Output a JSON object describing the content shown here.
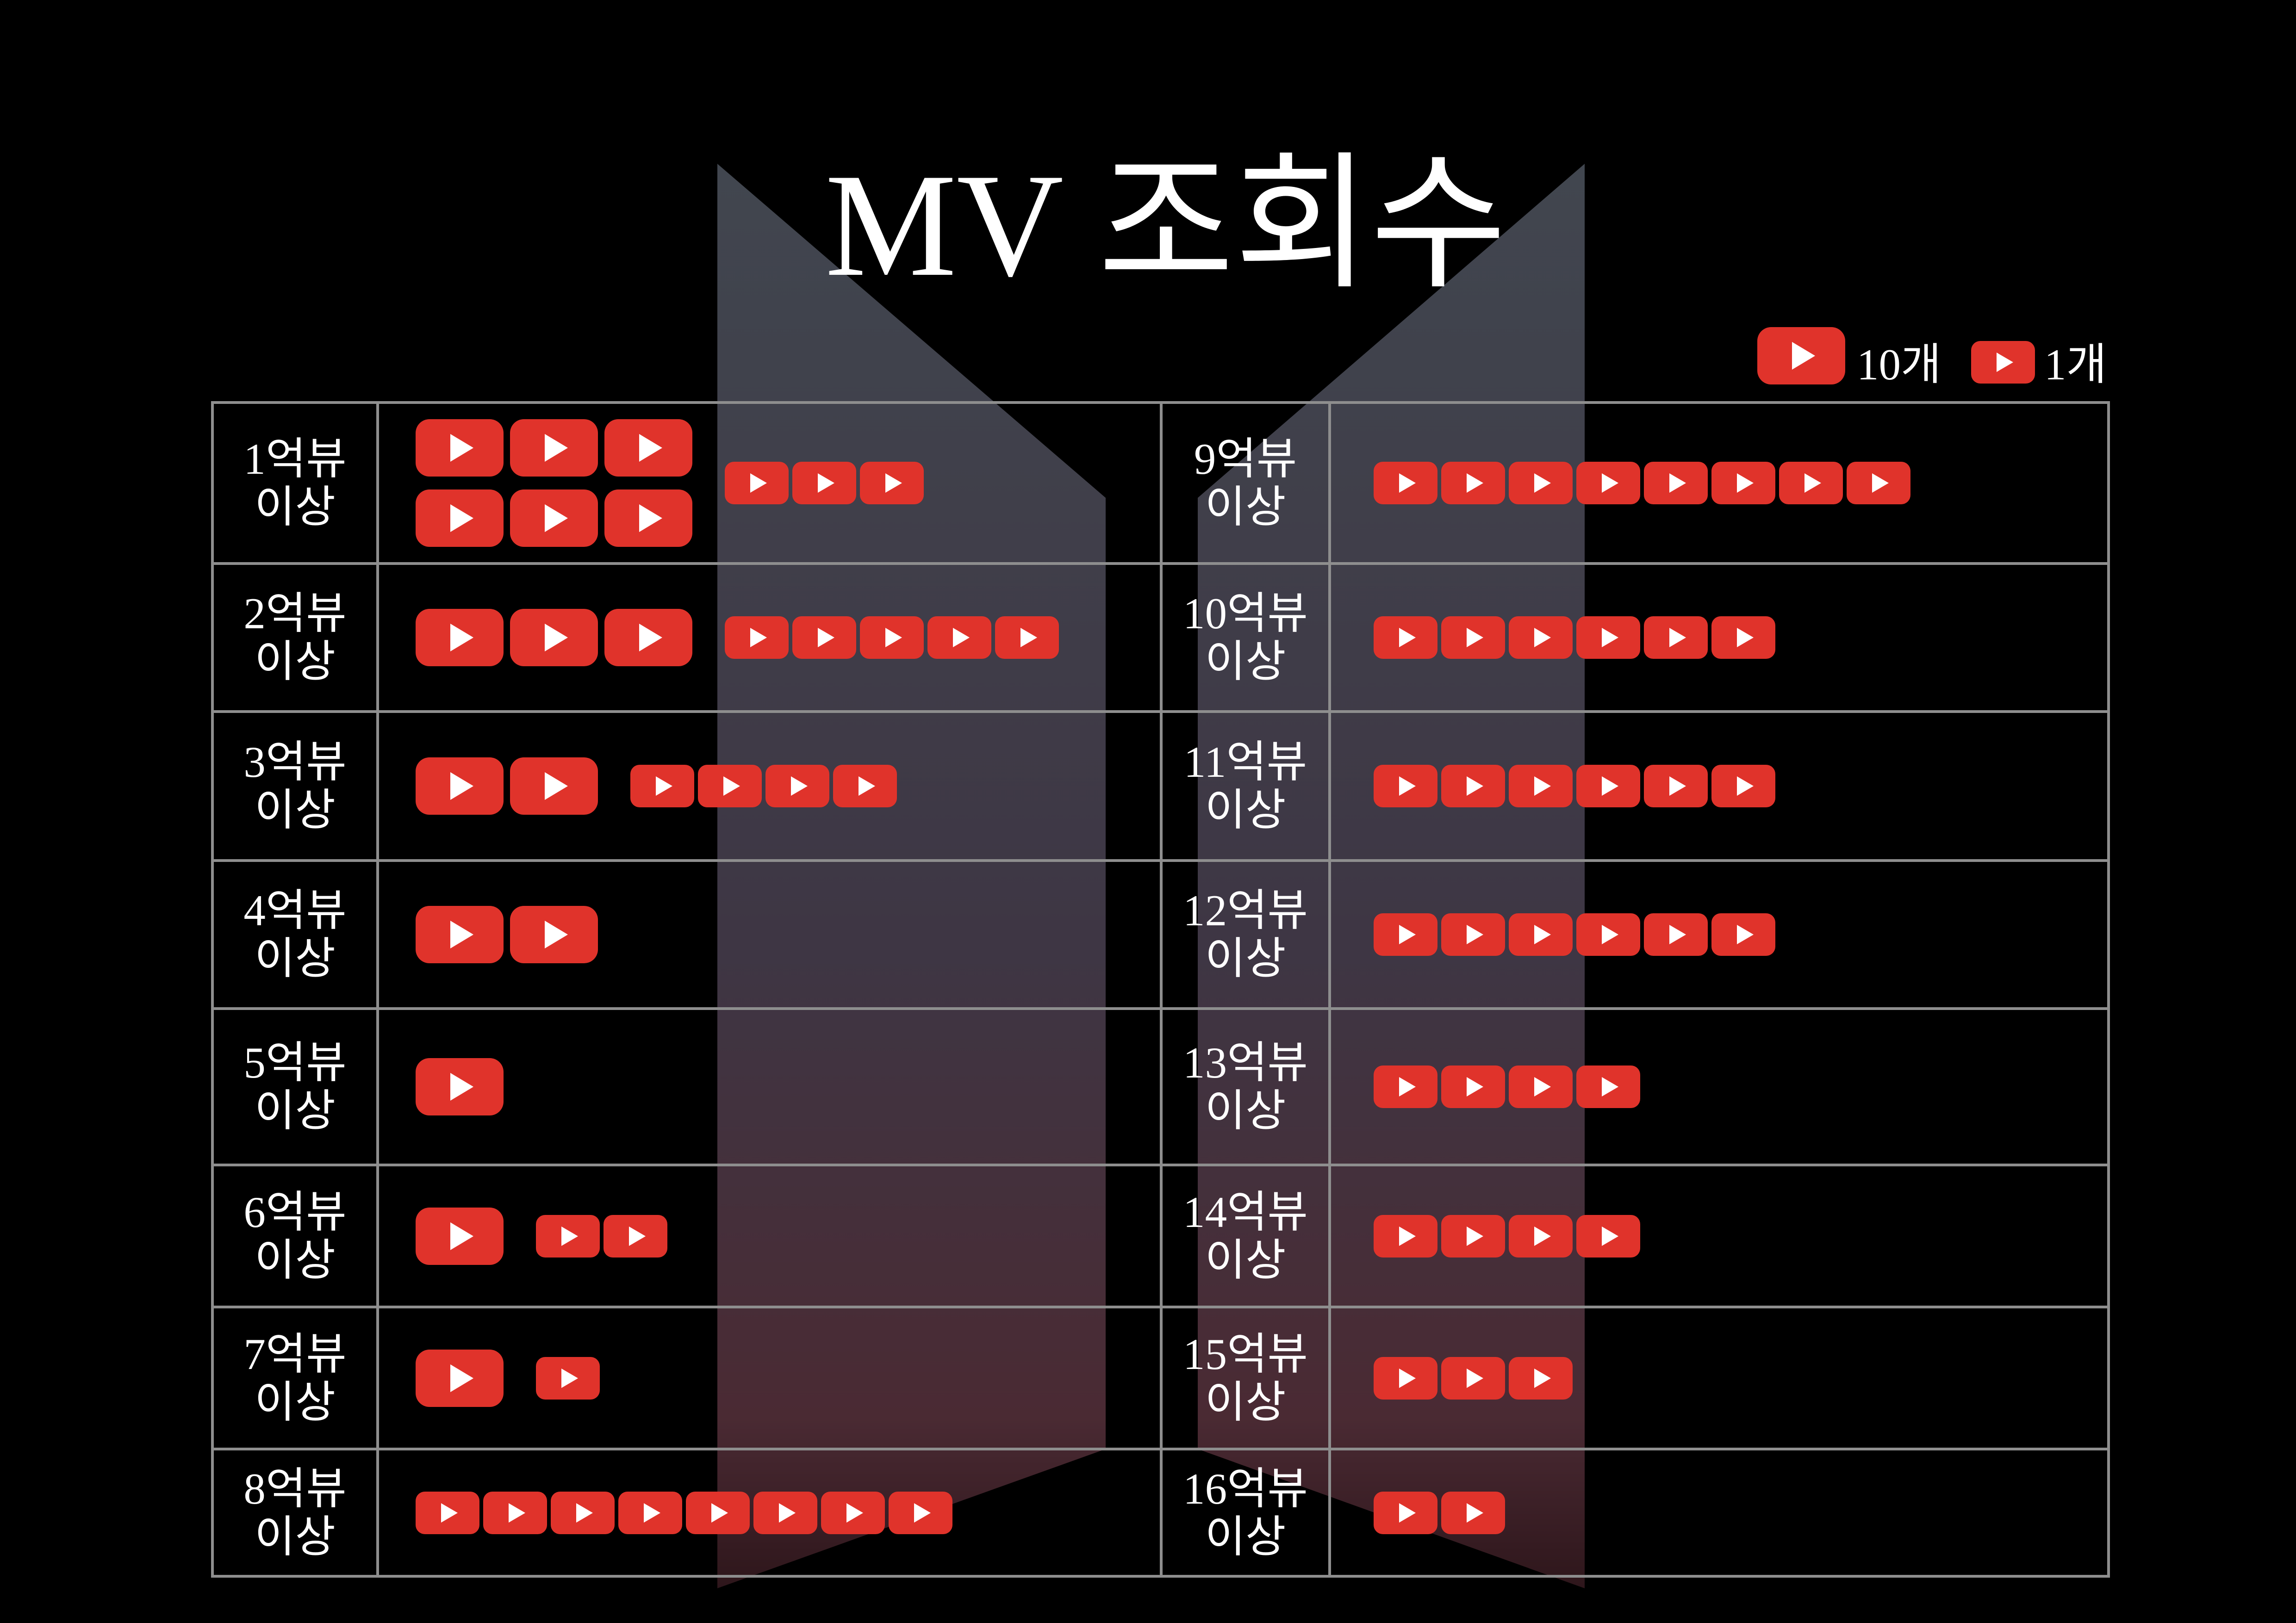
{
  "colors": {
    "background": "#000000",
    "text": "#ffffff",
    "icon": "#e0332b",
    "icon_glyph": "#ffffff",
    "grid": "#8e8e8e",
    "logo_panel_top": "#41464f",
    "logo_panel_bottom": "#4a2a33"
  },
  "chart_data": {
    "type": "bar",
    "title": "MV 조회수",
    "legend": [
      {
        "label": "10개",
        "icon": "youtube-play-icon-large"
      },
      {
        "label": "1개",
        "icon": "youtube-play-icon-small"
      }
    ],
    "categories": [
      "1억뷰 이상",
      "2억뷰 이상",
      "3억뷰 이상",
      "4억뷰 이상",
      "5억뷰 이상",
      "6억뷰 이상",
      "7억뷰 이상",
      "8억뷰 이상",
      "9억뷰 이상",
      "10억뷰 이상",
      "11억뷰 이상",
      "12억뷰 이상",
      "13억뷰 이상",
      "14억뷰 이상",
      "15억뷰 이상",
      "16억뷰 이상"
    ],
    "values": [
      63,
      35,
      24,
      20,
      10,
      12,
      11,
      8,
      8,
      6,
      6,
      6,
      4,
      4,
      3,
      2
    ]
  }
}
